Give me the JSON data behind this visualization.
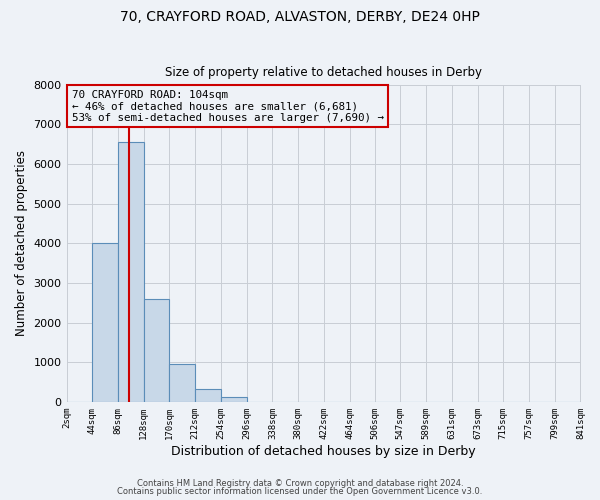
{
  "title_line1": "70, CRAYFORD ROAD, ALVASTON, DERBY, DE24 0HP",
  "title_line2": "Size of property relative to detached houses in Derby",
  "xlabel": "Distribution of detached houses by size in Derby",
  "ylabel": "Number of detached properties",
  "bar_color": "#c8d8e8",
  "bar_edge_color": "#5b8db8",
  "background_color": "#eef2f7",
  "grid_color": "#c8cdd4",
  "annotation_box_color": "#cc0000",
  "vline_color": "#cc0000",
  "vline_x": 104,
  "bin_edges": [
    2,
    44,
    86,
    128,
    170,
    212,
    254,
    296,
    338,
    380,
    422,
    464,
    506,
    547,
    589,
    631,
    673,
    715,
    757,
    799,
    841
  ],
  "bin_heights": [
    0,
    4000,
    6550,
    2600,
    950,
    330,
    120,
    0,
    0,
    0,
    0,
    0,
    0,
    0,
    0,
    0,
    0,
    0,
    0,
    0
  ],
  "tick_labels": [
    "2sqm",
    "44sqm",
    "86sqm",
    "128sqm",
    "170sqm",
    "212sqm",
    "254sqm",
    "296sqm",
    "338sqm",
    "380sqm",
    "422sqm",
    "464sqm",
    "506sqm",
    "547sqm",
    "589sqm",
    "631sqm",
    "673sqm",
    "715sqm",
    "757sqm",
    "799sqm",
    "841sqm"
  ],
  "ylim": [
    0,
    8000
  ],
  "yticks": [
    0,
    1000,
    2000,
    3000,
    4000,
    5000,
    6000,
    7000,
    8000
  ],
  "annotation_line1": "70 CRAYFORD ROAD: 104sqm",
  "annotation_line2": "← 46% of detached houses are smaller (6,681)",
  "annotation_line3": "53% of semi-detached houses are larger (7,690) →",
  "footer_line1": "Contains HM Land Registry data © Crown copyright and database right 2024.",
  "footer_line2": "Contains public sector information licensed under the Open Government Licence v3.0."
}
